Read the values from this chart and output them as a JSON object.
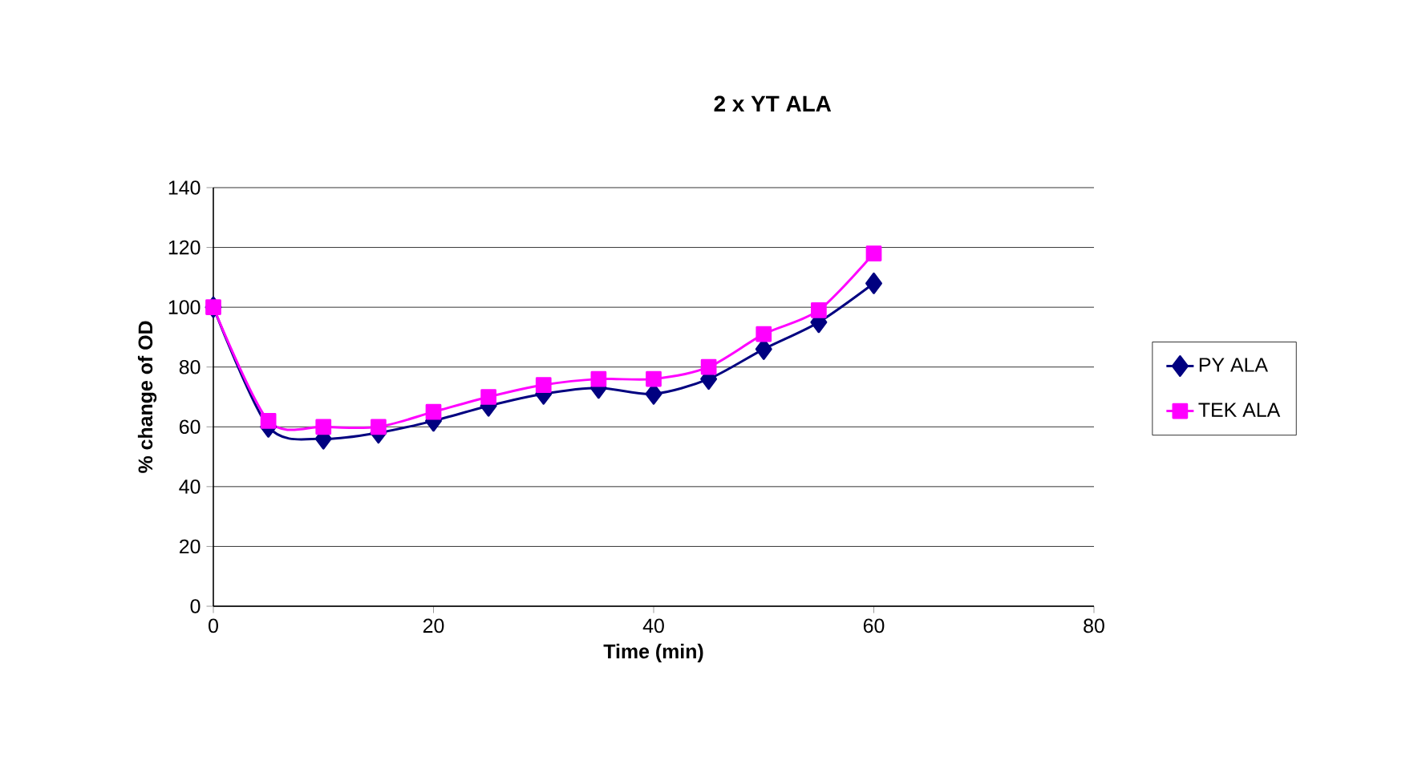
{
  "chart_data": {
    "type": "line",
    "title": "2 x YT ALA",
    "xlabel": "Time (min)",
    "ylabel": "% change of OD",
    "x": [
      0,
      5,
      10,
      15,
      20,
      25,
      30,
      35,
      40,
      45,
      50,
      55,
      60
    ],
    "series": [
      {
        "name": "PY ALA",
        "color": "#000080",
        "marker": "diamond",
        "values": [
          100,
          60,
          56,
          58,
          62,
          67,
          71,
          73,
          71,
          76,
          86,
          95,
          108
        ]
      },
      {
        "name": "TEK ALA",
        "color": "#ff00ff",
        "marker": "square",
        "values": [
          100,
          62,
          60,
          60,
          65,
          70,
          74,
          76,
          76,
          80,
          91,
          99,
          118
        ]
      }
    ],
    "xlim": [
      0,
      80
    ],
    "xticks": [
      0,
      20,
      40,
      60,
      80
    ],
    "ylim": [
      0,
      140
    ],
    "yticks": [
      0,
      20,
      40,
      60,
      80,
      100,
      120,
      140
    ],
    "grid": "y",
    "legend": "right"
  }
}
